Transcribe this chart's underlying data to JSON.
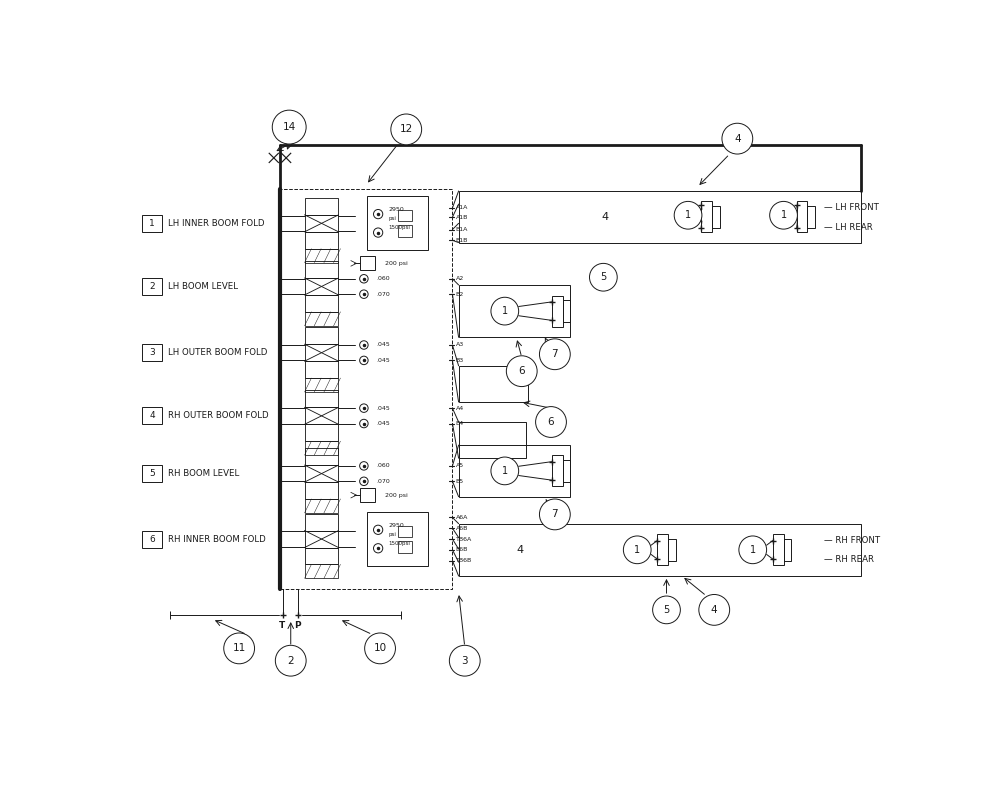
{
  "bg_color": "#ffffff",
  "line_color": "#1a1a1a",
  "row_labels": [
    "1",
    "2",
    "3",
    "4",
    "5",
    "6"
  ],
  "row_texts": [
    "LH INNER BOOM FOLD",
    "LH BOOM LEVEL",
    "LH OUTER BOOM FOLD",
    "RH OUTER BOOM FOLD",
    "RH BOOM LEVEL",
    "RH INNER BOOM FOLD"
  ],
  "port_labels_top": [
    [
      "A1A",
      6.5
    ],
    [
      "A1B",
      6.35
    ],
    [
      "B1A",
      6.22
    ],
    [
      "B1B",
      6.08
    ]
  ],
  "port_labels_mid1": [
    [
      "A2",
      5.48
    ],
    [
      "B2",
      5.28
    ]
  ],
  "port_labels_mid2": [
    [
      "A3",
      4.6
    ],
    [
      "B3",
      4.42
    ]
  ],
  "port_labels_mid3": [
    [
      "A4",
      3.8
    ],
    [
      "B4",
      3.62
    ]
  ],
  "port_labels_mid4": [
    [
      "A5",
      3.1
    ],
    [
      "B5",
      2.9
    ]
  ],
  "port_labels_bot": [
    [
      "A6A",
      2.35
    ],
    [
      "A6B",
      2.2
    ],
    [
      "TB6A",
      2.05
    ],
    [
      "B6B",
      1.9
    ],
    [
      "TB6B",
      1.75
    ]
  ],
  "lh_front": "LH FRONT",
  "lh_rear": "LH REAR",
  "rh_front": "RH FRONT",
  "rh_rear": "RH REAR"
}
